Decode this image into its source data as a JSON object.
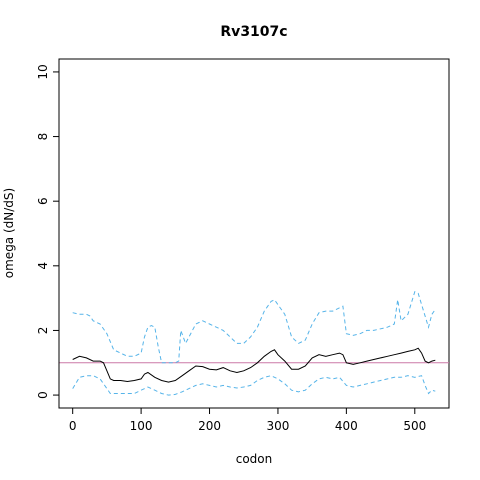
{
  "chart_data": {
    "type": "line",
    "title": "Rv3107c",
    "xlabel": "codon",
    "ylabel": "omega (dN/dS)",
    "xlim": [
      -20,
      550
    ],
    "ylim": [
      -0.4,
      10.4
    ],
    "xticks": [
      0,
      100,
      200,
      300,
      400,
      500
    ],
    "yticks": [
      0,
      2,
      4,
      6,
      8,
      10
    ],
    "reference_line": {
      "y": 1,
      "color": "#cc79a7"
    },
    "grid": false,
    "series": [
      {
        "role": "estimate",
        "color": "#000000",
        "style": "solid",
        "x": [
          0,
          10,
          20,
          30,
          40,
          45,
          50,
          55,
          60,
          70,
          80,
          90,
          100,
          105,
          110,
          120,
          130,
          140,
          150,
          160,
          170,
          180,
          190,
          200,
          210,
          220,
          230,
          240,
          250,
          260,
          270,
          280,
          290,
          295,
          300,
          310,
          320,
          330,
          340,
          350,
          360,
          370,
          380,
          390,
          395,
          400,
          410,
          420,
          430,
          440,
          450,
          460,
          470,
          480,
          490,
          500,
          505,
          510,
          515,
          520,
          525,
          530
        ],
        "y": [
          1.1,
          1.2,
          1.15,
          1.05,
          1.05,
          1.0,
          0.75,
          0.5,
          0.45,
          0.45,
          0.42,
          0.45,
          0.5,
          0.65,
          0.7,
          0.55,
          0.45,
          0.4,
          0.45,
          0.6,
          0.75,
          0.9,
          0.88,
          0.8,
          0.78,
          0.85,
          0.75,
          0.7,
          0.75,
          0.85,
          1.0,
          1.2,
          1.35,
          1.4,
          1.25,
          1.05,
          0.8,
          0.8,
          0.9,
          1.15,
          1.25,
          1.2,
          1.25,
          1.3,
          1.25,
          1.0,
          0.95,
          1.0,
          1.05,
          1.1,
          1.15,
          1.2,
          1.25,
          1.3,
          1.35,
          1.4,
          1.45,
          1.3,
          1.05,
          1.0,
          1.05,
          1.08
        ]
      },
      {
        "role": "upper",
        "color": "#56b4e9",
        "style": "dashed",
        "x": [
          0,
          10,
          20,
          25,
          30,
          40,
          50,
          60,
          70,
          80,
          90,
          100,
          105,
          110,
          115,
          120,
          125,
          130,
          140,
          150,
          155,
          158,
          165,
          170,
          180,
          190,
          200,
          210,
          220,
          230,
          240,
          250,
          260,
          270,
          280,
          290,
          295,
          300,
          310,
          320,
          330,
          340,
          350,
          360,
          370,
          380,
          390,
          395,
          400,
          410,
          420,
          430,
          440,
          450,
          460,
          470,
          475,
          480,
          490,
          500,
          505,
          510,
          520,
          525,
          530
        ],
        "y": [
          2.55,
          2.5,
          2.5,
          2.45,
          2.3,
          2.2,
          1.9,
          1.4,
          1.3,
          1.2,
          1.2,
          1.3,
          1.8,
          2.1,
          2.15,
          2.1,
          1.5,
          1.0,
          1.0,
          1.0,
          1.05,
          2.0,
          1.6,
          1.8,
          2.2,
          2.3,
          2.2,
          2.1,
          2.0,
          1.8,
          1.6,
          1.6,
          1.8,
          2.1,
          2.6,
          2.9,
          2.95,
          2.8,
          2.5,
          1.8,
          1.6,
          1.7,
          2.2,
          2.55,
          2.6,
          2.6,
          2.7,
          2.75,
          1.9,
          1.85,
          1.9,
          2.0,
          2.0,
          2.05,
          2.1,
          2.2,
          2.95,
          2.3,
          2.5,
          3.2,
          3.15,
          2.8,
          2.1,
          2.5,
          2.65
        ]
      },
      {
        "role": "lower",
        "color": "#56b4e9",
        "style": "dashed",
        "x": [
          0,
          10,
          20,
          30,
          40,
          50,
          55,
          60,
          70,
          80,
          90,
          100,
          110,
          120,
          130,
          140,
          150,
          160,
          170,
          180,
          190,
          200,
          210,
          220,
          230,
          240,
          250,
          260,
          270,
          280,
          290,
          300,
          310,
          320,
          330,
          340,
          350,
          360,
          370,
          380,
          390,
          400,
          410,
          420,
          430,
          440,
          450,
          460,
          470,
          480,
          490,
          500,
          510,
          515,
          520,
          525,
          530
        ],
        "y": [
          0.2,
          0.55,
          0.6,
          0.6,
          0.5,
          0.2,
          0.05,
          0.05,
          0.05,
          0.05,
          0.05,
          0.15,
          0.25,
          0.15,
          0.05,
          0.0,
          0.02,
          0.1,
          0.2,
          0.3,
          0.35,
          0.3,
          0.25,
          0.3,
          0.25,
          0.22,
          0.25,
          0.3,
          0.45,
          0.55,
          0.6,
          0.5,
          0.35,
          0.15,
          0.1,
          0.15,
          0.35,
          0.5,
          0.55,
          0.5,
          0.55,
          0.3,
          0.25,
          0.3,
          0.35,
          0.4,
          0.45,
          0.5,
          0.55,
          0.55,
          0.6,
          0.55,
          0.6,
          0.3,
          0.05,
          0.15,
          0.12
        ]
      }
    ]
  }
}
